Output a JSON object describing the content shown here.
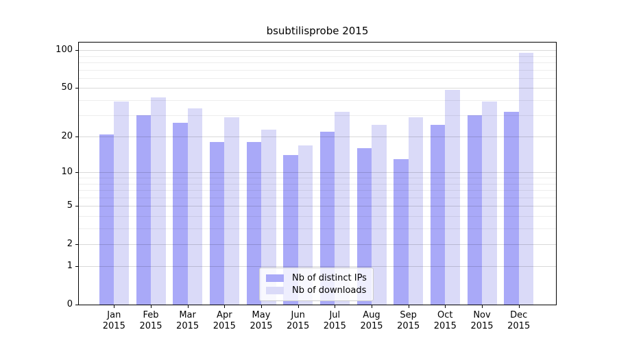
{
  "chart_data": {
    "type": "bar",
    "title": "bsubtilisprobe 2015",
    "categories": [
      "Jan 2015",
      "Feb 2015",
      "Mar 2015",
      "Apr 2015",
      "May 2015",
      "Jun 2015",
      "Jul 2015",
      "Aug 2015",
      "Sep 2015",
      "Oct 2015",
      "Nov 2015",
      "Dec 2015"
    ],
    "x_ticklabels": [
      [
        "Jan",
        "2015"
      ],
      [
        "Feb",
        "2015"
      ],
      [
        "Mar",
        "2015"
      ],
      [
        "Apr",
        "2015"
      ],
      [
        "May",
        "2015"
      ],
      [
        "Jun",
        "2015"
      ],
      [
        "Jul",
        "2015"
      ],
      [
        "Aug",
        "2015"
      ],
      [
        "Sep",
        "2015"
      ],
      [
        "Oct",
        "2015"
      ],
      [
        "Nov",
        "2015"
      ],
      [
        "Dec",
        "2015"
      ]
    ],
    "series": [
      {
        "name": "Nb of distinct IPs",
        "color": "#a9a9f8",
        "values": [
          21,
          30,
          26,
          18,
          18,
          14,
          22,
          16,
          13,
          25,
          30,
          32
        ]
      },
      {
        "name": "Nb of downloads",
        "color": "#dadaf8",
        "values": [
          39,
          42,
          34,
          29,
          23,
          17,
          32,
          25,
          29,
          48,
          39,
          95
        ]
      }
    ],
    "xlabel": "",
    "ylabel": "",
    "yscale": "log1p",
    "yticks": [
      0,
      1,
      2,
      5,
      10,
      20,
      50,
      100
    ],
    "y_minor_gridlines": [
      3,
      4,
      6,
      7,
      8,
      9,
      30,
      40,
      60,
      70,
      80,
      90
    ],
    "ylim": [
      0,
      115
    ],
    "grid": true,
    "legend_position": "lower center",
    "colors": {
      "grid_major": "rgba(0,0,0,0.15)",
      "grid_minor": "rgba(0,0,0,0.07)",
      "axis": "#000000",
      "background": "#ffffff"
    }
  }
}
